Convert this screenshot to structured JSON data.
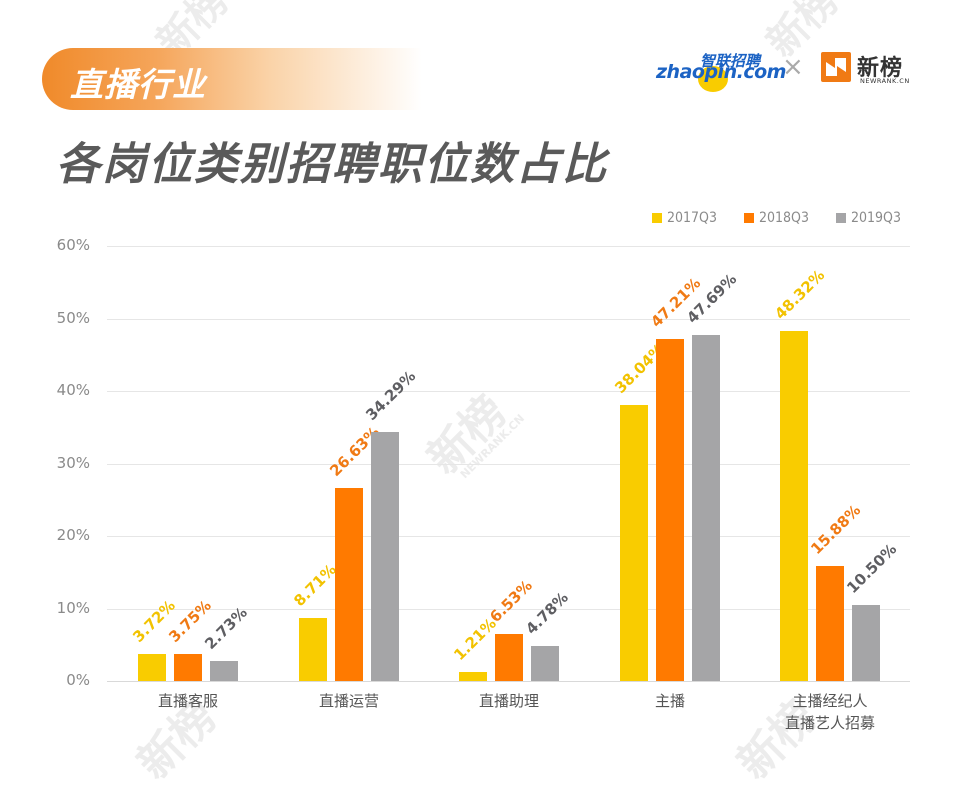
{
  "header": {
    "tag": "直播行业",
    "title": "各岗位类别招聘职位数占比",
    "logos": {
      "zhaopin_cn": "智联招聘",
      "zhaopin_en": "zhaopin.com",
      "separator": "×",
      "newrank_cn": "新榜",
      "newrank_en": "NEWRANK.CN"
    }
  },
  "watermark": {
    "cn": "新榜",
    "en": "NEWRANK.CN"
  },
  "colors": {
    "2017Q3": "#F9CC00",
    "2018Q3": "#FF7A00",
    "2019Q3": "#A5A5A7",
    "label_2017Q3": "#F2C200",
    "label_2018Q3": "#F07A14",
    "label_2019Q3": "#5E5E62"
  },
  "chart_data": {
    "type": "bar",
    "title": "各岗位类别招聘职位数占比",
    "xlabel": "",
    "ylabel": "",
    "ylim": [
      0,
      60
    ],
    "yticks": [
      "0%",
      "10%",
      "20%",
      "30%",
      "40%",
      "50%",
      "60%"
    ],
    "grid": true,
    "legend_position": "top-right",
    "categories": [
      "直播客服",
      "直播运营",
      "直播助理",
      "主播",
      "主播经纪人\n直播艺人招募"
    ],
    "category_lines": [
      [
        "直播客服"
      ],
      [
        "直播运营"
      ],
      [
        "直播助理"
      ],
      [
        "主播"
      ],
      [
        "主播经纪人",
        "直播艺人招募"
      ]
    ],
    "series": [
      {
        "name": "2017Q3",
        "values": [
          3.72,
          8.71,
          1.21,
          38.04,
          48.32
        ],
        "labels": [
          "3.72%",
          "8.71%",
          "1.21%",
          "38.04%",
          "48.32%"
        ]
      },
      {
        "name": "2018Q3",
        "values": [
          3.75,
          26.63,
          6.53,
          47.21,
          15.88
        ],
        "labels": [
          "3.75%",
          "26.63%",
          "6.53%",
          "47.21%",
          "15.88%"
        ]
      },
      {
        "name": "2019Q3",
        "values": [
          2.73,
          34.29,
          4.78,
          47.69,
          10.5
        ],
        "labels": [
          "2.73%",
          "34.29%",
          "4.78%",
          "47.69%",
          "10.50%"
        ]
      }
    ]
  }
}
